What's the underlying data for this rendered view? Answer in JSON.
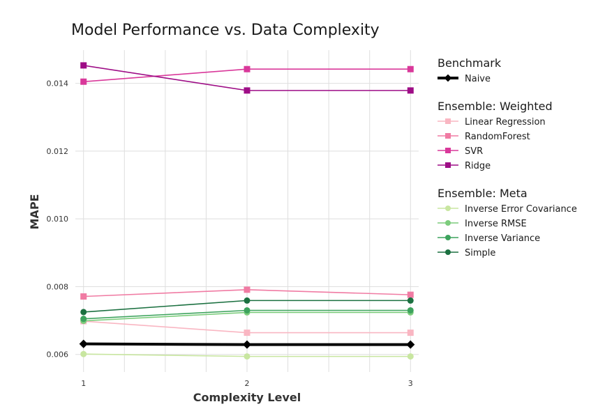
{
  "chart_data": {
    "type": "line",
    "title": "Model Performance vs. Data Complexity",
    "xlabel": "Complexity Level",
    "ylabel": "MAPE",
    "x": [
      1,
      2,
      3
    ],
    "xlim": [
      0.95,
      3.05
    ],
    "ylim": [
      0.00548,
      0.01498
    ],
    "yticks": [
      0.006,
      0.008,
      0.01,
      0.012,
      0.014
    ],
    "ytick_labels": [
      "0.006",
      "0.008",
      "0.010",
      "0.012",
      "0.014"
    ],
    "xticks": [
      1,
      2,
      3
    ],
    "xtick_labels": [
      "1",
      "2",
      "3"
    ],
    "grid": true,
    "legend_position": "right",
    "legend_groups": [
      {
        "title": "Benchmark",
        "series": [
          {
            "name": "Naive",
            "color": "#000000",
            "marker": "diamond",
            "linewidth": 4,
            "values": [
              0.00631,
              0.00629,
              0.00629
            ]
          }
        ]
      },
      {
        "title": "Ensemble: Weighted",
        "series": [
          {
            "name": "Linear Regression",
            "color": "#f9b6c2",
            "marker": "square",
            "linewidth": 1.6,
            "values": [
              0.00698,
              0.00664,
              0.00664
            ]
          },
          {
            "name": "RandomForest",
            "color": "#f07ba3",
            "marker": "square",
            "linewidth": 1.6,
            "values": [
              0.00771,
              0.00791,
              0.00776
            ]
          },
          {
            "name": "SVR",
            "color": "#d9389a",
            "marker": "square",
            "linewidth": 1.6,
            "values": [
              0.01405,
              0.01442,
              0.01442
            ]
          },
          {
            "name": "Ridge",
            "color": "#9e0d86",
            "marker": "square",
            "linewidth": 1.6,
            "values": [
              0.01453,
              0.01379,
              0.01379
            ]
          }
        ]
      },
      {
        "title": "Ensemble: Meta",
        "series": [
          {
            "name": "Inverse Error Covariance",
            "color": "#c8e6a0",
            "marker": "circle",
            "linewidth": 1.6,
            "values": [
              0.00601,
              0.00594,
              0.00594
            ]
          },
          {
            "name": "Inverse RMSE",
            "color": "#7ccc7c",
            "marker": "circle",
            "linewidth": 1.6,
            "values": [
              0.00699,
              0.00724,
              0.00724
            ]
          },
          {
            "name": "Inverse Variance",
            "color": "#3da35d",
            "marker": "circle",
            "linewidth": 1.6,
            "values": [
              0.00705,
              0.0073,
              0.0073
            ]
          },
          {
            "name": "Simple",
            "color": "#1b7040",
            "marker": "circle",
            "linewidth": 1.6,
            "values": [
              0.00725,
              0.00759,
              0.00759
            ]
          }
        ]
      }
    ]
  }
}
